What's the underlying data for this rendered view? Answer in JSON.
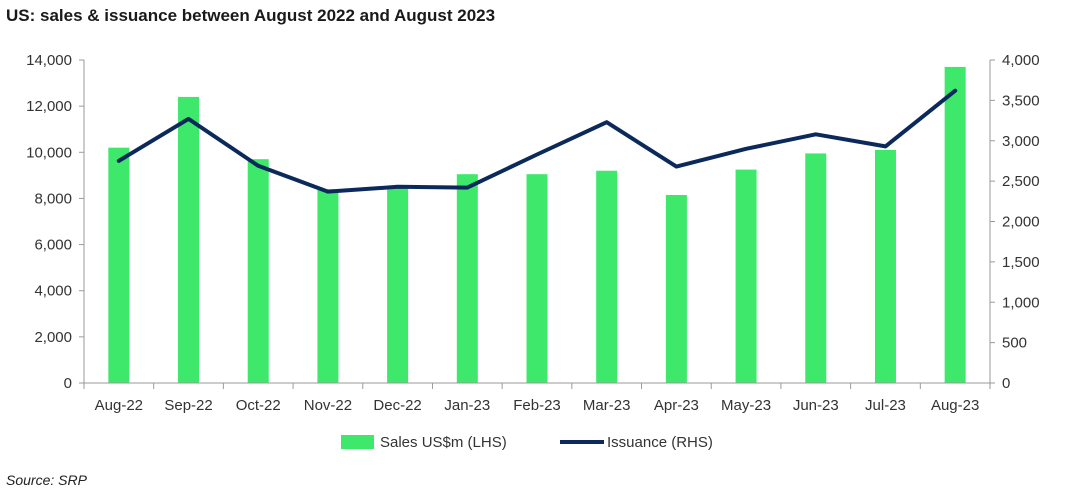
{
  "title": "US: sales & issuance between August 2022 and August 2023",
  "source": "Source: SRP",
  "colors": {
    "bar": "#3de86a",
    "line": "#0b2a5b",
    "axis": "#9a9a9a"
  },
  "chart_data": {
    "type": "bar",
    "categories": [
      "Aug-22",
      "Sep-22",
      "Oct-22",
      "Nov-22",
      "Dec-22",
      "Jan-23",
      "Feb-23",
      "Mar-23",
      "Apr-23",
      "May-23",
      "Jun-23",
      "Jul-23",
      "Aug-23"
    ],
    "series": [
      {
        "name": "Sales US$m (LHS)",
        "type": "bar",
        "axis": "left",
        "values": [
          10200,
          12400,
          9700,
          8400,
          8500,
          9050,
          9050,
          9200,
          8150,
          9250,
          9950,
          10100,
          13700
        ]
      },
      {
        "name": "Issuance (RHS)",
        "type": "line",
        "axis": "right",
        "values": [
          2750,
          3270,
          2690,
          2370,
          2430,
          2420,
          2830,
          3230,
          2680,
          2900,
          3080,
          2930,
          3620
        ]
      }
    ],
    "y_left": {
      "min": 0,
      "max": 14000,
      "ticks": [
        "0",
        "2,000",
        "4,000",
        "6,000",
        "8,000",
        "10,000",
        "12,000",
        "14,000"
      ]
    },
    "y_right": {
      "min": 0,
      "max": 4000,
      "ticks": [
        "0",
        "500",
        "1,000",
        "1,500",
        "2,000",
        "2,500",
        "3,000",
        "3,500",
        "4,000"
      ]
    },
    "grid": false,
    "legend": "bottom"
  }
}
